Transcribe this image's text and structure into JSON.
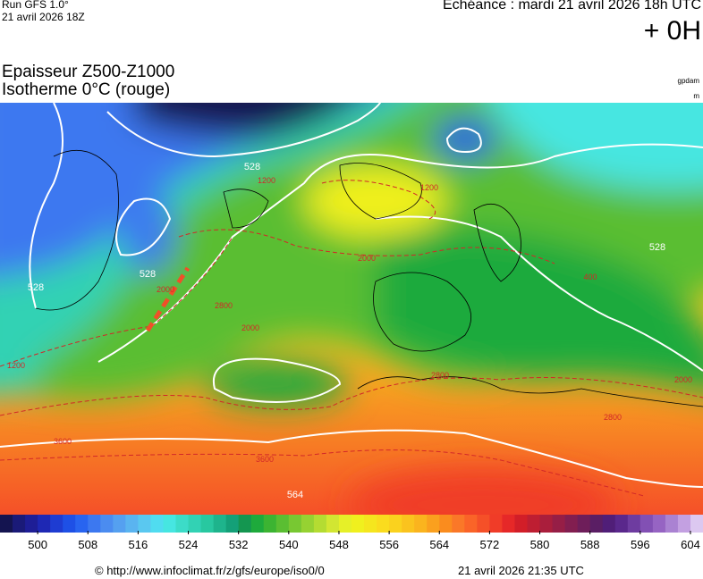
{
  "header": {
    "run": "Run GFS 1.0°",
    "run_date": "21 avril 2026 18Z",
    "echeance": "Echéance : mardi 21 avril 2026 18h UTC",
    "offset": "+ 0H",
    "title": "Epaisseur Z500-Z1000",
    "subtitle": "Isotherme 0°C (rouge)",
    "unit_thickness": "gpdam",
    "unit_isotherm": "m"
  },
  "map": {
    "contour_labels": [
      "528",
      "528",
      "528",
      "528",
      "564",
      "1200",
      "1200",
      "2000",
      "2000",
      "2800",
      "2800",
      "3600",
      "3600",
      "400",
      "2000",
      "1200",
      "2800",
      "2000"
    ]
  },
  "colorbar": {
    "range": [
      494,
      606
    ],
    "ticks": [
      500,
      508,
      516,
      524,
      532,
      540,
      548,
      556,
      564,
      572,
      580,
      588,
      596,
      604
    ],
    "colors": [
      "#141450",
      "#1a1a78",
      "#1e1e96",
      "#1e28b4",
      "#1e3cd2",
      "#1e50e6",
      "#2864f0",
      "#3c78f0",
      "#4b8cf0",
      "#55a0f0",
      "#5ab4f0",
      "#5ac8f0",
      "#50dcf0",
      "#46e6e1",
      "#3cdcc8",
      "#32d2b4",
      "#28c8a0",
      "#1eb48c",
      "#14a078",
      "#149650",
      "#1eaa3c",
      "#3cb432",
      "#5abe32",
      "#78c832",
      "#96d232",
      "#b4dc32",
      "#d2e632",
      "#e6f028",
      "#f0f01e",
      "#f5e61e",
      "#fadc1e",
      "#fad21e",
      "#fac31e",
      "#fab41e",
      "#faa01e",
      "#fa8c1e",
      "#fa7828",
      "#fa6428",
      "#f55028",
      "#f03c28",
      "#e62828",
      "#d21e28",
      "#be1e32",
      "#aa1e3c",
      "#961e46",
      "#821e50",
      "#6e1e5a",
      "#5a1e64",
      "#501e78",
      "#5a288c",
      "#6e3ca0",
      "#8250b4",
      "#9664c3",
      "#aa82d2",
      "#c3a0e1",
      "#dcc8f0"
    ]
  },
  "footer": {
    "url": "© http://www.infoclimat.fr/z/gfs/europe/iso0/0",
    "timestamp": "21 avril 2026 21:35 UTC"
  }
}
